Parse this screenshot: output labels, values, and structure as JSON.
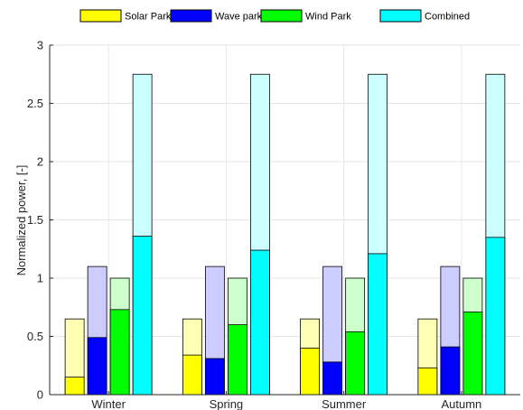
{
  "chart_data": {
    "type": "bar",
    "categories": [
      "Winter",
      "Spring",
      "Summer",
      "Autumn"
    ],
    "series": [
      {
        "name": "Solar Park",
        "color": "#ffff00",
        "light_color": "#ffffb3",
        "values": [
          0.15,
          0.34,
          0.4,
          0.23
        ],
        "upper_values": [
          0.65,
          0.65,
          0.65,
          0.65
        ]
      },
      {
        "name": "Wave park",
        "color": "#0000ff",
        "light_color": "#ccccff",
        "values": [
          0.49,
          0.31,
          0.28,
          0.41
        ],
        "upper_values": [
          1.1,
          1.1,
          1.1,
          1.1
        ]
      },
      {
        "name": "Wind Park",
        "color": "#00ff00",
        "light_color": "#ccffcc",
        "values": [
          0.73,
          0.6,
          0.54,
          0.71
        ],
        "upper_values": [
          1.0,
          1.0,
          1.0,
          1.0
        ]
      },
      {
        "name": "Combined",
        "color": "#00ffff",
        "light_color": "#ccffff",
        "values": [
          1.36,
          1.24,
          1.21,
          1.35
        ],
        "upper_values": [
          2.75,
          2.75,
          2.75,
          2.75
        ]
      }
    ],
    "ylabel": "Normalized power, [-]",
    "ylim": [
      0,
      3
    ],
    "yticks": [
      0,
      0.5,
      1,
      1.5,
      2,
      2.5,
      3
    ],
    "ytick_labels": [
      "0",
      "0.5",
      "1",
      "1.5",
      "2",
      "2.5",
      "3"
    ],
    "grid": true,
    "legend_position": "top, horizontal"
  }
}
